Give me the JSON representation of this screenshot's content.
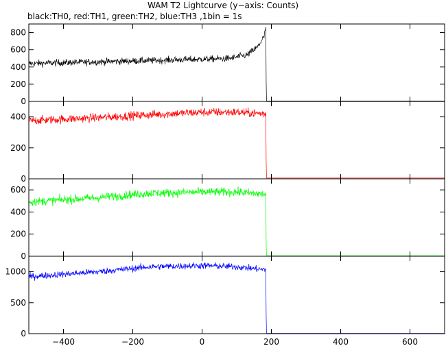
{
  "title": "WAM T2 Lightcurve (y−axis: Counts)",
  "subtitle": "black:TH0, red:TH1, green:TH2, blue:TH3 ,1bin = 1s",
  "chart_data": {
    "type": "line",
    "xlim": [
      -500,
      700
    ],
    "x_ticks": [
      -400,
      -200,
      0,
      200,
      400,
      600
    ],
    "x_tick_labels": [
      "−400",
      "−200",
      "0",
      "200",
      "400",
      "600"
    ],
    "bin_seconds": 1,
    "series": [
      {
        "name": "TH0",
        "color": "#000000",
        "ylim": [
          0,
          900
        ],
        "y_ticks": [
          0,
          200,
          400,
          600,
          800
        ],
        "y_tick_labels": [
          "0",
          "200",
          "400",
          "600",
          "800"
        ],
        "trend": [
          [
            -500,
            440
          ],
          [
            -300,
            460
          ],
          [
            -100,
            480
          ],
          [
            0,
            490
          ],
          [
            80,
            500
          ],
          [
            130,
            540
          ],
          [
            160,
            630
          ],
          [
            180,
            760
          ],
          [
            183,
            850
          ]
        ],
        "noise": 28,
        "cutoff": 185,
        "drop_value": 240,
        "after_value": 5
      },
      {
        "name": "TH1",
        "color": "#ff0000",
        "ylim": [
          0,
          500
        ],
        "y_ticks": [
          0,
          200,
          400
        ],
        "y_tick_labels": [
          "0",
          "200",
          "400"
        ],
        "trend": [
          [
            -500,
            375
          ],
          [
            -300,
            395
          ],
          [
            -100,
            420
          ],
          [
            0,
            430
          ],
          [
            100,
            430
          ],
          [
            183,
            420
          ]
        ],
        "noise": 20,
        "cutoff": 185,
        "drop_value": 110,
        "after_value": 5
      },
      {
        "name": "TH2",
        "color": "#00ff00",
        "ylim": [
          0,
          700
        ],
        "y_ticks": [
          0,
          200,
          400,
          600
        ],
        "y_tick_labels": [
          "0",
          "200",
          "400",
          "600"
        ],
        "trend": [
          [
            -500,
            490
          ],
          [
            -300,
            530
          ],
          [
            -150,
            570
          ],
          [
            0,
            580
          ],
          [
            100,
            580
          ],
          [
            183,
            560
          ]
        ],
        "noise": 28,
        "cutoff": 185,
        "drop_value": 110,
        "after_value": 5
      },
      {
        "name": "TH3",
        "color": "#0000ff",
        "ylim": [
          0,
          1250
        ],
        "y_ticks": [
          0,
          500,
          1000
        ],
        "y_tick_labels": [
          "0",
          "500",
          "1000"
        ],
        "trend": [
          [
            -500,
            920
          ],
          [
            -300,
            1000
          ],
          [
            -150,
            1080
          ],
          [
            0,
            1100
          ],
          [
            100,
            1080
          ],
          [
            183,
            1030
          ]
        ],
        "noise": 38,
        "cutoff": 185,
        "drop_value": 280,
        "after_value": 5
      }
    ]
  }
}
